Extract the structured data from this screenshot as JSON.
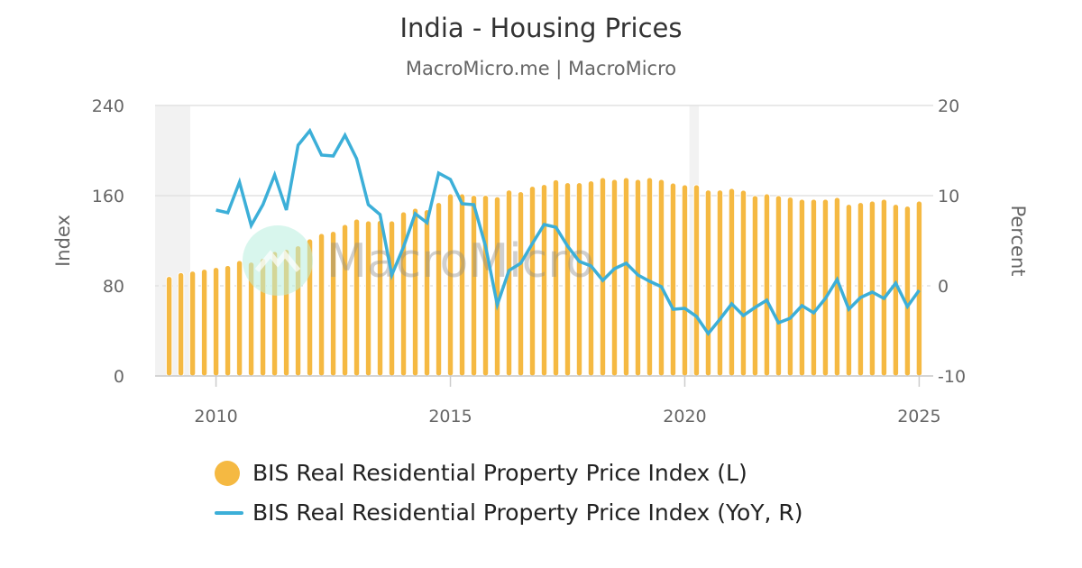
{
  "chart_data": {
    "type": "bar+line",
    "title": "India - Housing Prices",
    "subtitle": "MacroMicro.me | MacroMicro",
    "watermark": "MacroMicro",
    "ylabel_left": "Index",
    "ylabel_right": "Percent",
    "ylim_left": [
      0,
      240
    ],
    "ylim_right": [
      -10,
      20
    ],
    "yticks_left": [
      "0",
      "80",
      "160",
      "240"
    ],
    "yticks_right": [
      "-10",
      "0",
      "10",
      "20"
    ],
    "xticks": [
      "2010",
      "2015",
      "2020",
      "2025"
    ],
    "xlim": [
      2008.7,
      2025.3
    ],
    "grid": true,
    "legend_position": "bottom",
    "shaded_periods": [
      [
        2008.7,
        2009.45
      ],
      [
        2020.1,
        2020.3
      ]
    ],
    "x_start": "2009Q1",
    "x": [
      "2009Q1",
      "2009Q2",
      "2009Q3",
      "2009Q4",
      "2010Q1",
      "2010Q2",
      "2010Q3",
      "2010Q4",
      "2011Q1",
      "2011Q2",
      "2011Q3",
      "2011Q4",
      "2012Q1",
      "2012Q2",
      "2012Q3",
      "2012Q4",
      "2013Q1",
      "2013Q2",
      "2013Q3",
      "2013Q4",
      "2014Q1",
      "2014Q2",
      "2014Q3",
      "2014Q4",
      "2015Q1",
      "2015Q2",
      "2015Q3",
      "2015Q4",
      "2016Q1",
      "2016Q2",
      "2016Q3",
      "2016Q4",
      "2017Q1",
      "2017Q2",
      "2017Q3",
      "2017Q4",
      "2018Q1",
      "2018Q2",
      "2018Q3",
      "2018Q4",
      "2019Q1",
      "2019Q2",
      "2019Q3",
      "2019Q4",
      "2020Q1",
      "2020Q2",
      "2020Q3",
      "2020Q4",
      "2021Q1",
      "2021Q2",
      "2021Q3",
      "2021Q4",
      "2022Q1",
      "2022Q2",
      "2022Q3",
      "2022Q4",
      "2023Q1",
      "2023Q2",
      "2023Q3",
      "2023Q4",
      "2024Q1",
      "2024Q2",
      "2024Q3",
      "2024Q4",
      "2025Q1"
    ],
    "series": [
      {
        "name": "BIS Real Residential Property Price Index (L)",
        "type": "bar",
        "axis": "left",
        "color": "#f5b942",
        "values": [
          88.3,
          91.7,
          93,
          94.7,
          96.3,
          98,
          102.4,
          101,
          104.3,
          110.4,
          112.3,
          115.5,
          121.6,
          126.4,
          128.3,
          134.4,
          139.2,
          137.6,
          138,
          137.6,
          145.6,
          148.8,
          147.5,
          153.9,
          161.6,
          161.6,
          160.3,
          160.3,
          159,
          165,
          163.5,
          168.3,
          169.9,
          174.1,
          171.5,
          171.5,
          173.1,
          176,
          174.4,
          176,
          174.4,
          176,
          174.4,
          171.2,
          169.6,
          169.6,
          165,
          165,
          166.4,
          164.8,
          160,
          161.6,
          160,
          158.7,
          156.8,
          156.8,
          156.8,
          158.4,
          152.3,
          153.9,
          155.2,
          156.8,
          152.3,
          150.7,
          155.2
        ]
      },
      {
        "name": "BIS Real Residential Property Price Index (YoY, R)",
        "type": "line",
        "axis": "right",
        "color": "#3cafd8",
        "values": [
          null,
          null,
          null,
          null,
          8.4,
          8.1,
          11.5,
          6.7,
          9.0,
          12.3,
          8.4,
          15.6,
          17.2,
          14.5,
          14.4,
          16.7,
          14.1,
          9.0,
          7.9,
          1.2,
          4.3,
          8.0,
          7.0,
          12.5,
          11.8,
          9.1,
          9.0,
          4.4,
          -2.1,
          1.7,
          2.5,
          4.7,
          6.8,
          6.5,
          4.4,
          2.7,
          2.2,
          0.6,
          1.9,
          2.5,
          1.2,
          0.5,
          -0.1,
          -2.6,
          -2.5,
          -3.4,
          -5.3,
          -3.7,
          -2.0,
          -3.3,
          -2.4,
          -1.6,
          -4.1,
          -3.6,
          -2.2,
          -3.0,
          -1.4,
          0.7,
          -2.6,
          -1.3,
          -0.7,
          -1.4,
          0.3,
          -2.3,
          -0.5
        ]
      }
    ]
  }
}
